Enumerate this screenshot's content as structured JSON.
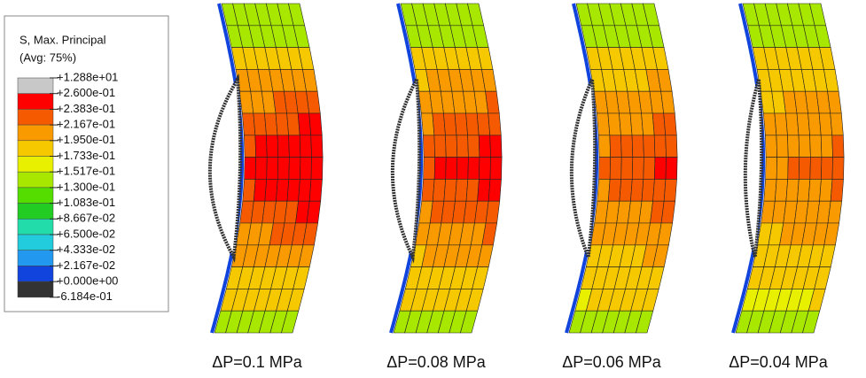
{
  "legend": {
    "title": [
      "S, Max. Principal",
      "(Avg: 75%)"
    ],
    "labels": [
      "+1.288e+01",
      "+2.600e-01",
      "+2.383e-01",
      "+2.167e-01",
      "+1.950e-01",
      "+1.733e-01",
      "+1.517e-01",
      "+1.300e-01",
      "+1.083e-01",
      "+8.667e-02",
      "+6.500e-02",
      "+4.333e-02",
      "+2.167e-02",
      "+0.000e+00",
      "-6.184e-01"
    ],
    "colors": [
      "#c8c8c8",
      "#ff0000",
      "#f55a00",
      "#f89a00",
      "#f5c800",
      "#e8f000",
      "#a8e800",
      "#55dd00",
      "#22cc22",
      "#22ddaa",
      "#22ccdd",
      "#2299ee",
      "#1144dd",
      "#333333"
    ]
  },
  "panels": [
    {
      "label": "ΔP=0.1 MPa"
    },
    {
      "label": "ΔP=0.08 MPa"
    },
    {
      "label": "ΔP=0.06 MPa"
    },
    {
      "label": "ΔP=0.04 MPa"
    }
  ]
}
